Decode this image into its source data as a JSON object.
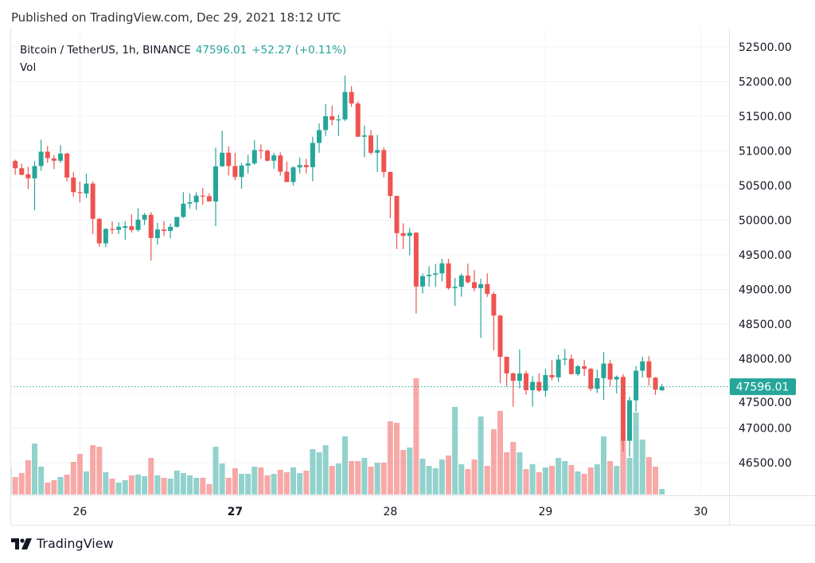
{
  "header": {
    "published": "Published on TradingView.com, Dec 29, 2021 18:12 UTC"
  },
  "legend": {
    "symbol": "Bitcoin / TetherUS, 1h, BINANCE",
    "last_price": "47596.01",
    "change": "+52.27 (+0.11%)",
    "volume_label": "Vol"
  },
  "price_axis": {
    "ticks": [
      "52500.00",
      "52000.00",
      "51500.00",
      "51000.00",
      "50500.00",
      "50000.00",
      "49500.00",
      "49000.00",
      "48500.00",
      "48000.00",
      "47500.00",
      "47000.00",
      "46500.00"
    ],
    "current_price_label": "47596.01"
  },
  "time_axis": {
    "ticks": [
      {
        "label": "26",
        "time": "2021-12-26 00:00"
      },
      {
        "label": "27",
        "time": "2021-12-27 00:00"
      },
      {
        "label": "28",
        "time": "2021-12-28 00:00"
      },
      {
        "label": "29",
        "time": "2021-12-29 00:00"
      },
      {
        "label": "30",
        "time": "2021-12-30 00:00"
      }
    ]
  },
  "logo": {
    "text": "TradingView"
  },
  "colors": {
    "up": "#26a69a",
    "down": "#ef5350",
    "grid": "#f0f3fa",
    "text": "#131722"
  },
  "chart_data": {
    "type": "candlestick",
    "title": "Bitcoin / TetherUS, 1h, BINANCE",
    "interval": "1h",
    "ylim": [
      46040,
      52764
    ],
    "grid": true,
    "last_price_line": 47596.01,
    "columns": [
      "time",
      "open",
      "high",
      "low",
      "close",
      "volume_relative"
    ],
    "candles": [
      [
        "2021-12-25 13:00",
        50830,
        50880,
        50810,
        50860,
        33
      ],
      [
        "2021-12-25 14:00",
        50854,
        50873,
        50654,
        50750,
        22
      ],
      [
        "2021-12-25 15:00",
        50750,
        50815,
        50650,
        50654,
        27
      ],
      [
        "2021-12-25 16:00",
        50662,
        50770,
        50450,
        50604,
        43
      ],
      [
        "2021-12-25 17:00",
        50604,
        50854,
        50142,
        50781,
        64
      ],
      [
        "2021-12-25 18:00",
        50781,
        51162,
        50712,
        50988,
        35
      ],
      [
        "2021-12-25 19:00",
        50988,
        51069,
        50827,
        50896,
        15
      ],
      [
        "2021-12-25 20:00",
        50892,
        50942,
        50738,
        50858,
        18
      ],
      [
        "2021-12-25 21:00",
        50858,
        51085,
        50827,
        50962,
        22
      ],
      [
        "2021-12-25 22:00",
        50962,
        50973,
        50558,
        50615,
        25
      ],
      [
        "2021-12-25 23:00",
        50615,
        50692,
        50338,
        50404,
        41
      ],
      [
        "2021-12-26 00:00",
        50404,
        50558,
        50258,
        50390,
        51
      ],
      [
        "2021-12-26 01:00",
        50385,
        50673,
        50319,
        50527,
        29
      ],
      [
        "2021-12-26 02:00",
        50527,
        50558,
        49800,
        50019,
        62
      ],
      [
        "2021-12-26 03:00",
        50019,
        50030,
        49615,
        49665,
        60
      ],
      [
        "2021-12-26 04:00",
        49665,
        49885,
        49608,
        49873,
        28
      ],
      [
        "2021-12-26 05:00",
        49873,
        49981,
        49800,
        49860,
        20
      ],
      [
        "2021-12-26 06:00",
        49860,
        49970,
        49800,
        49904,
        15
      ],
      [
        "2021-12-26 07:00",
        49890,
        49981,
        49719,
        49912,
        18
      ],
      [
        "2021-12-26 08:00",
        49912,
        50085,
        49823,
        49858,
        24
      ],
      [
        "2021-12-26 09:00",
        49858,
        50173,
        49835,
        50008,
        25
      ],
      [
        "2021-12-26 10:00",
        50008,
        50104,
        49931,
        50077,
        23
      ],
      [
        "2021-12-26 11:00",
        50077,
        50115,
        49415,
        49742,
        46
      ],
      [
        "2021-12-26 12:00",
        49742,
        49962,
        49646,
        49865,
        24
      ],
      [
        "2021-12-26 13:00",
        49865,
        49988,
        49769,
        49846,
        21
      ],
      [
        "2021-12-26 14:00",
        49846,
        49950,
        49738,
        49904,
        20
      ],
      [
        "2021-12-26 15:00",
        49904,
        50046,
        49896,
        50046,
        30
      ],
      [
        "2021-12-26 16:00",
        50046,
        50404,
        50030,
        50238,
        27
      ],
      [
        "2021-12-26 17:00",
        50238,
        50385,
        50165,
        50258,
        24
      ],
      [
        "2021-12-26 18:00",
        50258,
        50404,
        50146,
        50354,
        21
      ],
      [
        "2021-12-26 19:00",
        50354,
        50469,
        50223,
        50346,
        21
      ],
      [
        "2021-12-26 20:00",
        50346,
        50385,
        50270,
        50270,
        13
      ],
      [
        "2021-12-26 21:00",
        50270,
        51046,
        49915,
        50777,
        60
      ],
      [
        "2021-12-26 22:00",
        50777,
        51288,
        50770,
        50973,
        39
      ],
      [
        "2021-12-26 23:00",
        50973,
        51065,
        50646,
        50781,
        21
      ],
      [
        "2021-12-27 00:00",
        50781,
        50973,
        50577,
        50623,
        33
      ],
      [
        "2021-12-27 01:00",
        50623,
        50827,
        50454,
        50788,
        26
      ],
      [
        "2021-12-27 02:00",
        50788,
        50942,
        50673,
        50819,
        26
      ],
      [
        "2021-12-27 03:00",
        50819,
        51154,
        50800,
        51012,
        35
      ],
      [
        "2021-12-27 04:00",
        51012,
        51096,
        50885,
        51004,
        34
      ],
      [
        "2021-12-27 05:00",
        51004,
        51019,
        50846,
        50858,
        24
      ],
      [
        "2021-12-27 06:00",
        50858,
        50973,
        50742,
        50935,
        26
      ],
      [
        "2021-12-27 07:00",
        50935,
        50981,
        50642,
        50700,
        31
      ],
      [
        "2021-12-27 08:00",
        50700,
        50846,
        50550,
        50550,
        28
      ],
      [
        "2021-12-27 09:00",
        50550,
        50777,
        50500,
        50761,
        34
      ],
      [
        "2021-12-27 10:00",
        50761,
        50904,
        50673,
        50796,
        27
      ],
      [
        "2021-12-27 11:00",
        50796,
        50885,
        50673,
        50765,
        30
      ],
      [
        "2021-12-27 12:00",
        50765,
        51204,
        50562,
        51115,
        57
      ],
      [
        "2021-12-27 13:00",
        51115,
        51396,
        50973,
        51300,
        53
      ],
      [
        "2021-12-27 14:00",
        51300,
        51677,
        51215,
        51500,
        62
      ],
      [
        "2021-12-27 15:00",
        51500,
        51654,
        51369,
        51446,
        36
      ],
      [
        "2021-12-27 16:00",
        51446,
        51523,
        51215,
        51454,
        39
      ],
      [
        "2021-12-27 17:00",
        51454,
        52088,
        51430,
        51850,
        73
      ],
      [
        "2021-12-27 18:00",
        51850,
        51935,
        51635,
        51685,
        42
      ],
      [
        "2021-12-27 19:00",
        51685,
        51715,
        51204,
        51204,
        42
      ],
      [
        "2021-12-27 20:00",
        51204,
        51365,
        50908,
        51223,
        46
      ],
      [
        "2021-12-27 21:00",
        51223,
        51300,
        50946,
        50973,
        35
      ],
      [
        "2021-12-27 22:00",
        50973,
        51231,
        50696,
        51012,
        40
      ],
      [
        "2021-12-27 23:00",
        51012,
        51050,
        50619,
        50696,
        40
      ],
      [
        "2021-12-28 00:00",
        50696,
        50700,
        50031,
        50350,
        92
      ],
      [
        "2021-12-28 01:00",
        50350,
        50354,
        49581,
        49812,
        90
      ],
      [
        "2021-12-28 02:00",
        49812,
        49954,
        49581,
        49773,
        56
      ],
      [
        "2021-12-28 03:00",
        49773,
        49885,
        49492,
        49819,
        59
      ],
      [
        "2021-12-28 04:00",
        49819,
        49825,
        48654,
        49042,
        146
      ],
      [
        "2021-12-28 05:00",
        49042,
        49231,
        48942,
        49192,
        45
      ],
      [
        "2021-12-28 06:00",
        49192,
        49335,
        49038,
        49212,
        36
      ],
      [
        "2021-12-28 07:00",
        49212,
        49365,
        49038,
        49231,
        33
      ],
      [
        "2021-12-28 08:00",
        49231,
        49442,
        49115,
        49377,
        44
      ],
      [
        "2021-12-28 09:00",
        49377,
        49442,
        49000,
        49019,
        49
      ],
      [
        "2021-12-28 10:00",
        49019,
        49165,
        48762,
        49038,
        110
      ],
      [
        "2021-12-28 11:00",
        49038,
        49231,
        48896,
        49200,
        38
      ],
      [
        "2021-12-28 12:00",
        49200,
        49373,
        49085,
        49104,
        32
      ],
      [
        "2021-12-28 13:00",
        49104,
        49281,
        48973,
        49019,
        44
      ],
      [
        "2021-12-28 14:00",
        49019,
        49154,
        48300,
        49077,
        98
      ],
      [
        "2021-12-28 15:00",
        49077,
        49231,
        48892,
        48935,
        36
      ],
      [
        "2021-12-28 16:00",
        48935,
        48962,
        48123,
        48623,
        82
      ],
      [
        "2021-12-28 17:00",
        48623,
        48635,
        47646,
        48027,
        105
      ],
      [
        "2021-12-28 18:00",
        48027,
        48030,
        47596,
        47788,
        53
      ],
      [
        "2021-12-28 19:00",
        47788,
        47800,
        47308,
        47681,
        66
      ],
      [
        "2021-12-28 20:00",
        47681,
        48135,
        47569,
        47788,
        53
      ],
      [
        "2021-12-28 21:00",
        47788,
        47827,
        47481,
        47546,
        32
      ],
      [
        "2021-12-28 22:00",
        47546,
        47750,
        47308,
        47665,
        38
      ],
      [
        "2021-12-28 23:00",
        47665,
        47788,
        47520,
        47540,
        28
      ],
      [
        "2021-12-29 00:00",
        47538,
        47854,
        47450,
        47765,
        34
      ],
      [
        "2021-12-29 01:00",
        47765,
        47977,
        47688,
        47731,
        36
      ],
      [
        "2021-12-29 02:00",
        47731,
        48058,
        47662,
        47988,
        46
      ],
      [
        "2021-12-29 03:00",
        47988,
        48142,
        47904,
        48000,
        42
      ],
      [
        "2021-12-29 04:00",
        48000,
        48058,
        47777,
        47777,
        37
      ],
      [
        "2021-12-29 05:00",
        47777,
        47912,
        47750,
        47892,
        29
      ],
      [
        "2021-12-29 06:00",
        47892,
        47981,
        47750,
        47854,
        26
      ],
      [
        "2021-12-29 07:00",
        47854,
        47865,
        47535,
        47565,
        34
      ],
      [
        "2021-12-29 08:00",
        47565,
        47842,
        47508,
        47719,
        38
      ],
      [
        "2021-12-29 09:00",
        47719,
        48096,
        47404,
        47931,
        73
      ],
      [
        "2021-12-29 10:00",
        47931,
        47981,
        47604,
        47700,
        42
      ],
      [
        "2021-12-29 11:00",
        47700,
        47758,
        47500,
        47738,
        36
      ],
      [
        "2021-12-29 12:00",
        47738,
        47777,
        46662,
        46815,
        68
      ],
      [
        "2021-12-29 13:00",
        46815,
        47450,
        46585,
        47400,
        46
      ],
      [
        "2021-12-29 14:00",
        47400,
        47892,
        47238,
        47827,
        103
      ],
      [
        "2021-12-29 15:00",
        47827,
        48027,
        47727,
        47962,
        69
      ],
      [
        "2021-12-29 16:00",
        47962,
        48038,
        47612,
        47727,
        47
      ],
      [
        "2021-12-29 17:00",
        47727,
        47735,
        47477,
        47554,
        35
      ],
      [
        "2021-12-29 18:00",
        47544,
        47635,
        47538,
        47596.01,
        7
      ]
    ]
  }
}
